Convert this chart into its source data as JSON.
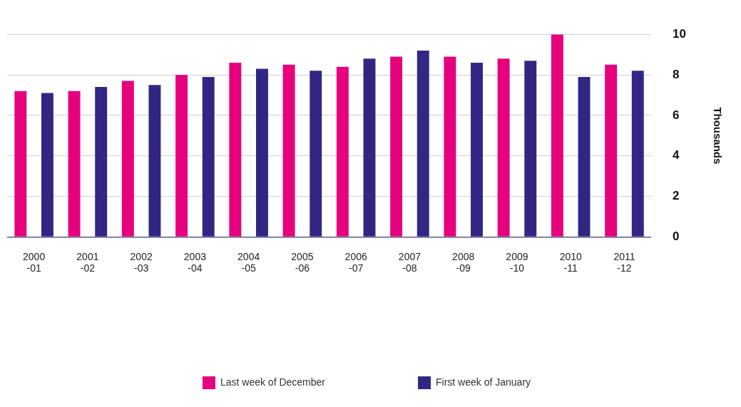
{
  "chart_data": {
    "type": "bar",
    "ylabel": "Thousands",
    "categories": [
      "2000-01",
      "2001-02",
      "2002-03",
      "2003-04",
      "2004-05",
      "2005-06",
      "2006-07",
      "2007-08",
      "2008-09",
      "2009-10",
      "2010-11",
      "2011-12"
    ],
    "series": [
      {
        "name": "Last week of December",
        "color": "#e6007e",
        "values": [
          7.2,
          7.2,
          7.7,
          8.0,
          8.6,
          8.5,
          8.4,
          8.9,
          8.9,
          8.8,
          10.0,
          8.5
        ]
      },
      {
        "name": "First week of January",
        "color": "#312783",
        "values": [
          7.1,
          7.4,
          7.5,
          7.9,
          8.3,
          8.2,
          8.8,
          9.2,
          8.6,
          8.7,
          7.9,
          8.2
        ]
      }
    ],
    "ylim": [
      0,
      10
    ],
    "yticks": [
      0,
      2,
      4,
      6,
      8,
      10
    ],
    "grid": "y",
    "legend": "bottom"
  }
}
